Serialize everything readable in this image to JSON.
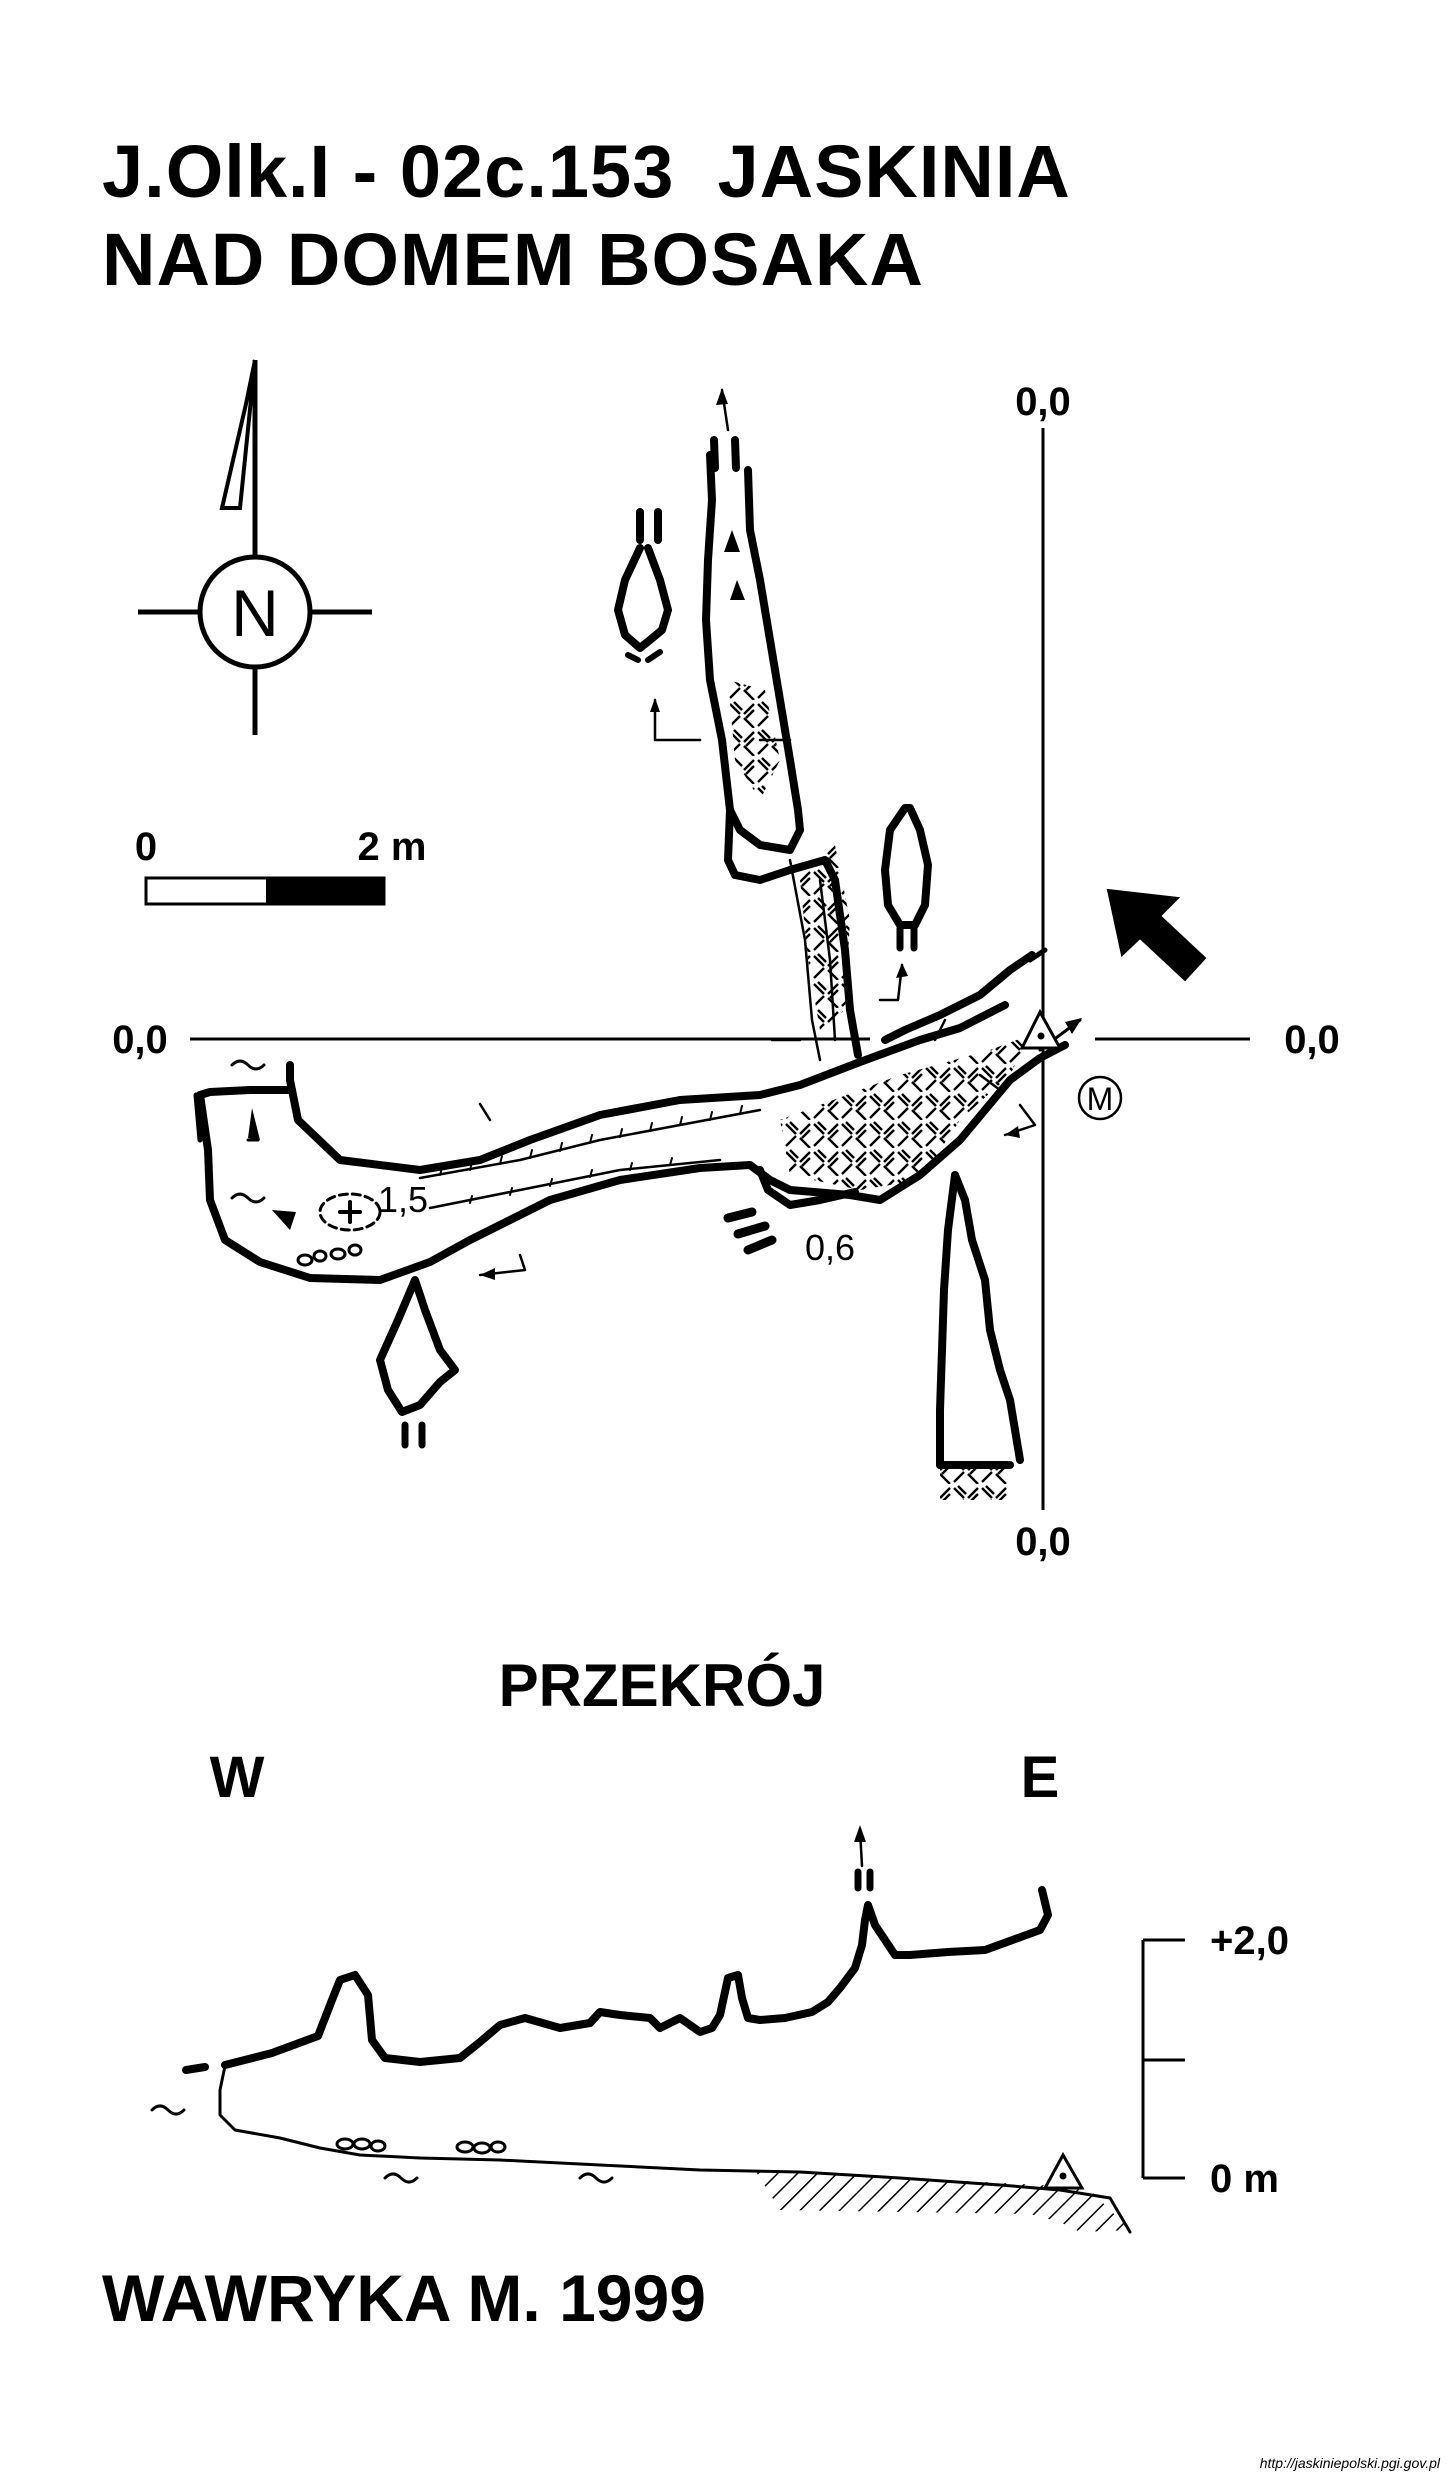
{
  "title": {
    "line1": "J.Olk.I - 02c.153  JASKINIA",
    "line2": "NAD DOMEM BOSAKA"
  },
  "north_arrow": {
    "letter": "N",
    "icon": "north-arrow-icon"
  },
  "scale_bar": {
    "start_label": "0",
    "end_label": "2 m"
  },
  "plan": {
    "axis_labels": {
      "top": "0,0",
      "bottom": "0,0",
      "left": "0,0",
      "right": "0,0"
    },
    "depth_labels": [
      "1,5",
      "0,6"
    ],
    "marker_letter": "M",
    "entrance_icon": "entrance-arrow-icon"
  },
  "section": {
    "title": "PRZEKRÓJ",
    "west_label": "W",
    "east_label": "E",
    "scale_top": "+2,0",
    "scale_bottom": "0 m"
  },
  "author": "WAWRYKA M. 1999",
  "source": "http://jaskiniepolski.pgi.gov.pl"
}
